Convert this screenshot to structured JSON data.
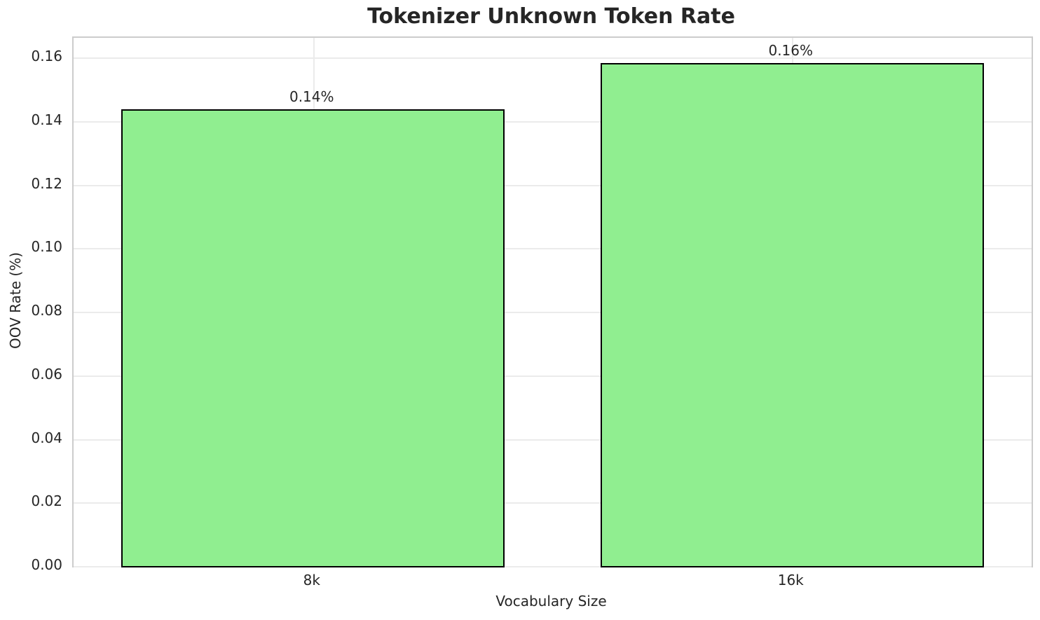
{
  "title": "Tokenizer Unknown Token Rate",
  "chart_data": {
    "type": "bar",
    "title": "Tokenizer Unknown Token Rate",
    "xlabel": "Vocabulary Size",
    "ylabel": "OOV Rate (%)",
    "categories": [
      "8k",
      "16k"
    ],
    "values": [
      0.1437,
      0.1582
    ],
    "bar_labels": [
      "0.14%",
      "0.16%"
    ],
    "yticks": [
      0.0,
      0.02,
      0.04,
      0.06,
      0.08,
      0.1,
      0.12,
      0.14,
      0.16
    ],
    "ytick_labels": [
      "0.00",
      "0.02",
      "0.04",
      "0.06",
      "0.08",
      "0.10",
      "0.12",
      "0.14",
      "0.16"
    ],
    "ylim": [
      0,
      0.1662
    ],
    "grid": true,
    "legend": null,
    "bar_color": "#90EE90",
    "bar_edge_color": "#000000",
    "grid_color": "#ebebeb",
    "spine_color": "#cccccc",
    "text_color": "#262626"
  }
}
